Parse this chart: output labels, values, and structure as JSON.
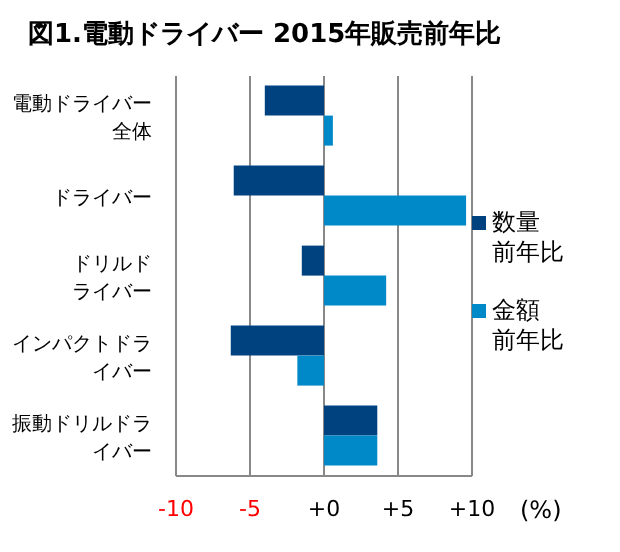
{
  "chart_data": {
    "type": "bar",
    "orientation": "horizontal",
    "title": "図1.電動ドライバー 2015年販売前年比",
    "xlabel": "(%)",
    "categories": [
      "電動ドライバー全体",
      "ドライバー",
      "ドリルドライバー",
      "インパクトドライバー",
      "振動ドリルドライバー"
    ],
    "series": [
      {
        "name": "数量前年比",
        "color": "#00427f",
        "values": [
          -4.0,
          -6.1,
          -1.5,
          -6.3,
          3.6
        ]
      },
      {
        "name": "金額前年比",
        "color": "#0089c8",
        "values": [
          0.6,
          9.6,
          4.2,
          -1.8,
          3.6
        ]
      }
    ],
    "xlim": [
      -10,
      10
    ],
    "xticks": [
      -10,
      -5,
      {
        "value": 0,
        "label": "+0"
      },
      {
        "value": 5,
        "label": "+5"
      },
      {
        "value": 10,
        "label": "+10"
      }
    ],
    "grid": "x",
    "legend": "right"
  }
}
